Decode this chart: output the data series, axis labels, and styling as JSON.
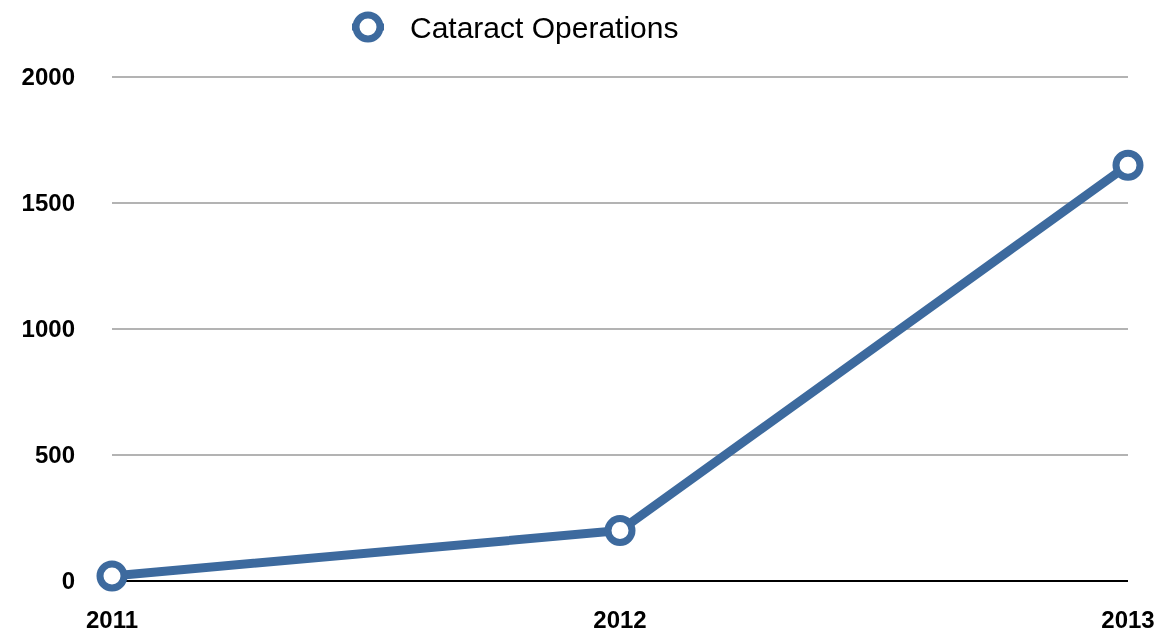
{
  "chart_data": {
    "type": "line",
    "categories": [
      "2011",
      "2012",
      "2013"
    ],
    "series": [
      {
        "name": "Cataract Operations",
        "color": "#3d6a9e",
        "values": [
          20,
          200,
          1650
        ]
      }
    ],
    "ylim": [
      0,
      2000
    ],
    "yticks": [
      0,
      500,
      1000,
      1500,
      2000
    ],
    "grid": "y",
    "legend": "top",
    "marker": "circle",
    "line_style": "solid"
  }
}
